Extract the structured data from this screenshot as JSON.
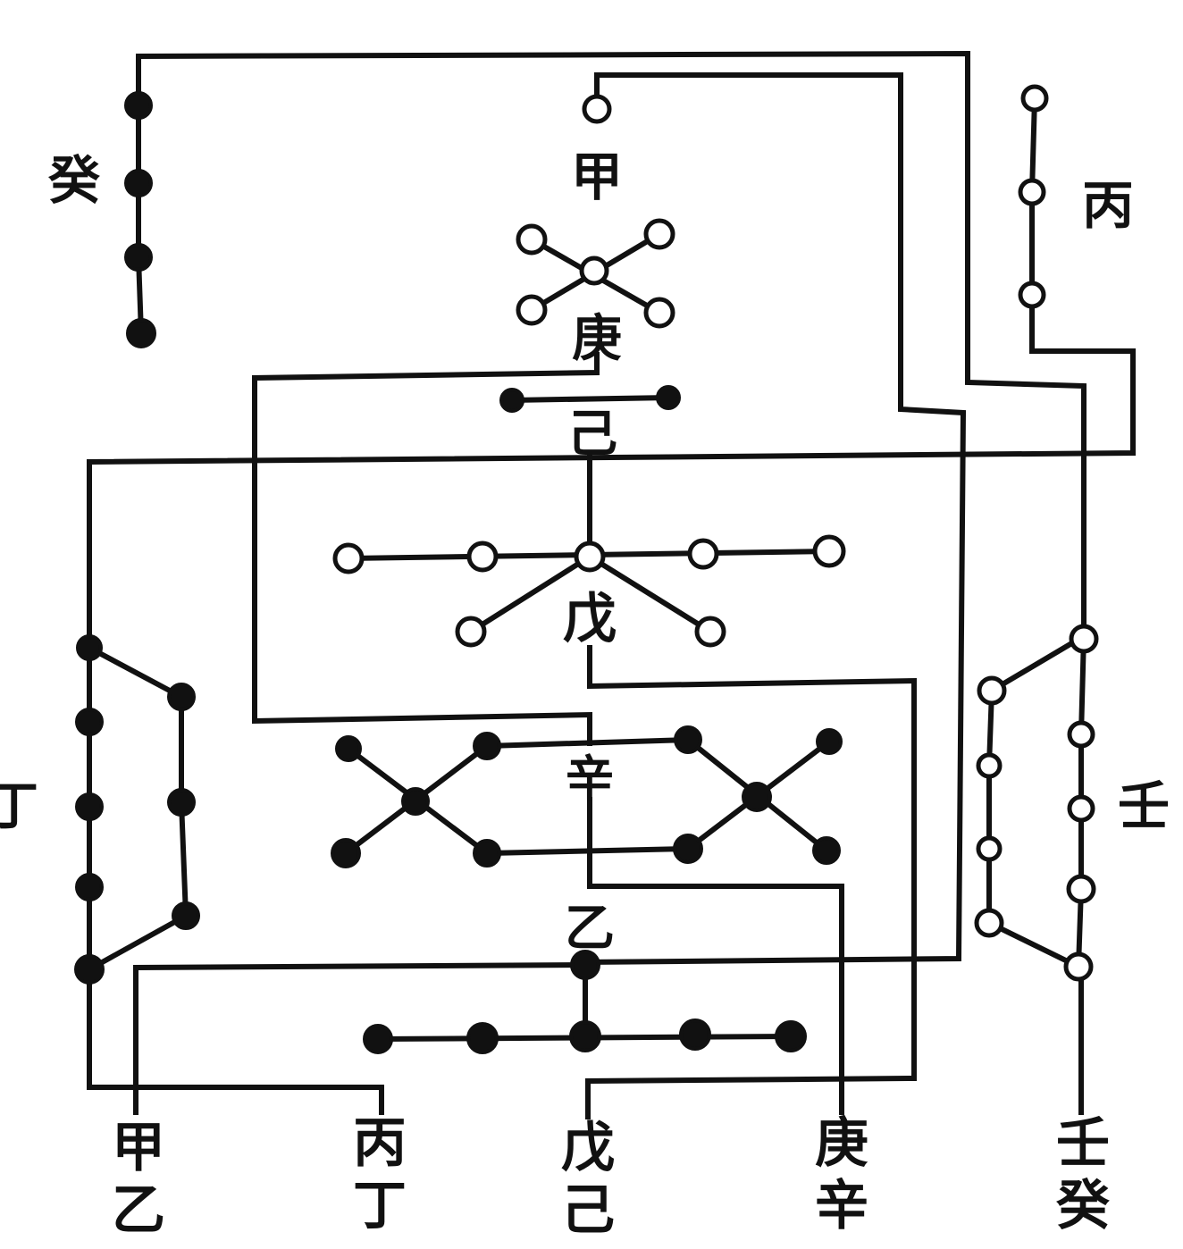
{
  "labels": {
    "gui_top_left": "癸",
    "jia_top": "甲",
    "bing_top_right": "丙",
    "geng": "庚",
    "ji": "己",
    "wu": "戊",
    "ding_left": "丁",
    "xin": "辛",
    "yi": "乙",
    "ren_right": "壬",
    "bottom": [
      {
        "top": "甲",
        "bottom": "乙"
      },
      {
        "top": "丙",
        "bottom": "丁"
      },
      {
        "top": "戊",
        "bottom": "己"
      },
      {
        "top": "庚",
        "bottom": "辛"
      },
      {
        "top": "壬",
        "bottom": "癸"
      }
    ]
  },
  "colors": {
    "ink": "#111111",
    "paper": "#ffffff"
  }
}
